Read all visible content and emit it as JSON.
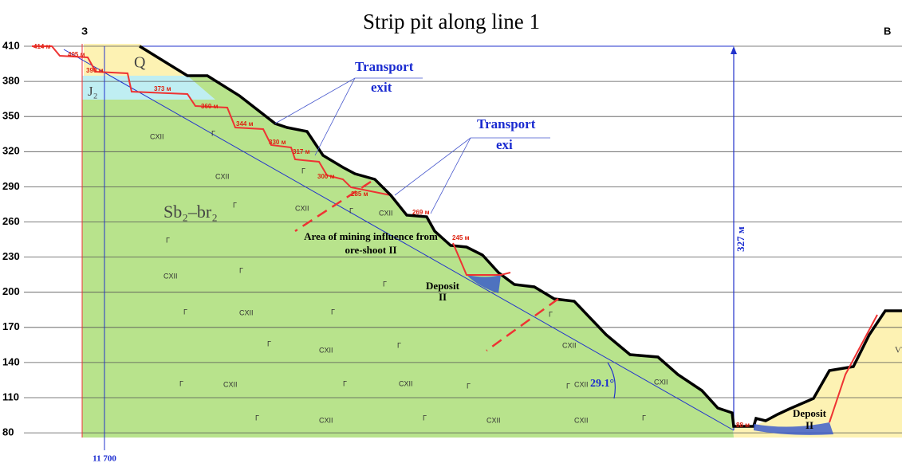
{
  "title": "Strip pit along line 1",
  "corners": [
    "З",
    "В"
  ],
  "levels": [
    "410",
    "380",
    "350",
    "320",
    "290",
    "260",
    "230",
    "200",
    "170",
    "140",
    "110",
    "80"
  ],
  "bench_labels": [
    "414 м",
    "405 м",
    "390 м",
    "373 м",
    "360 м",
    "344 м",
    "330 м",
    "317 м",
    "300 м",
    "285 м",
    "269 м",
    "245 м",
    "88 м"
  ],
  "callouts": [
    [
      "Transport",
      "exit"
    ],
    [
      "Transport",
      "exi"
    ]
  ],
  "influence_note": [
    "Area of mining influence from",
    "ore-shoot II"
  ],
  "deposits": [
    [
      "Deposit",
      "II"
    ],
    [
      "Deposit",
      "II"
    ]
  ],
  "depth_label": "327 м",
  "angle_label": "29.1°",
  "picket": "11 700",
  "units": [
    "Q",
    "J₂",
    "Sb₂–br₂",
    "ѴѴ"
  ],
  "cxii_marks": [
    "CXII",
    "CXII",
    "CXII",
    "CXII",
    "CXII",
    "CXII",
    "CXII",
    "CXII",
    "CXII",
    "CXII",
    "CXII",
    "CXII",
    "CXII",
    "CXII",
    "CXII"
  ],
  "g_marks": [
    "Г",
    "Г",
    "Г",
    "Г",
    "Г",
    "Г",
    "Г",
    "Г",
    "Г",
    "Г",
    "Г",
    "Г",
    "Г",
    "Г",
    "Г",
    "Г",
    "Г",
    "Г",
    "Г"
  ]
}
